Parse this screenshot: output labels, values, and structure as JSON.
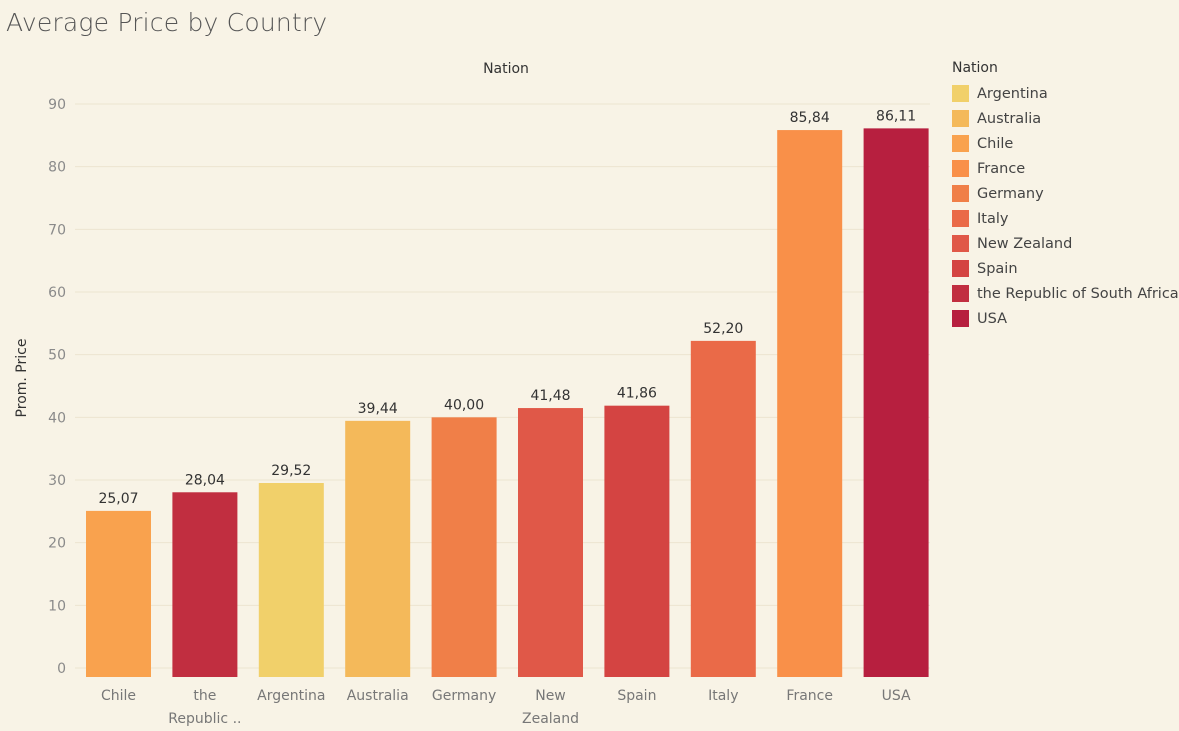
{
  "title": "Average Price by Country",
  "chart_data": {
    "type": "bar",
    "title": "Average Price by Country",
    "column_header": "Nation",
    "ylabel": "Prom. Price",
    "ylim": [
      0,
      90
    ],
    "yticks": [
      0,
      10,
      20,
      30,
      40,
      50,
      60,
      70,
      80,
      90
    ],
    "grid": true,
    "legend_position": "right",
    "categories": [
      {
        "label": [
          "Chile"
        ],
        "value": 25.07,
        "value_label": "25,07",
        "color": "#f9a24e"
      },
      {
        "label": [
          "the",
          "Republic .."
        ],
        "value": 28.04,
        "value_label": "28,04",
        "color": "#c12e40"
      },
      {
        "label": [
          "Argentina"
        ],
        "value": 29.52,
        "value_label": "29,52",
        "color": "#f1d06a"
      },
      {
        "label": [
          "Australia"
        ],
        "value": 39.44,
        "value_label": "39,44",
        "color": "#f4b95a"
      },
      {
        "label": [
          "Germany"
        ],
        "value": 40.0,
        "value_label": "40,00",
        "color": "#f07f48"
      },
      {
        "label": [
          "New",
          "Zealand"
        ],
        "value": 41.48,
        "value_label": "41,48",
        "color": "#e05848"
      },
      {
        "label": [
          "Spain"
        ],
        "value": 41.86,
        "value_label": "41,86",
        "color": "#d44442"
      },
      {
        "label": [
          "Italy"
        ],
        "value": 52.2,
        "value_label": "52,20",
        "color": "#ea6a48"
      },
      {
        "label": [
          "France"
        ],
        "value": 85.84,
        "value_label": "85,84",
        "color": "#f99049"
      },
      {
        "label": [
          "USA"
        ],
        "value": 86.11,
        "value_label": "86,11",
        "color": "#b71f3f"
      }
    ]
  },
  "legend": {
    "title": "Nation",
    "items": [
      {
        "label": "Argentina",
        "color": "#f1d06a"
      },
      {
        "label": "Australia",
        "color": "#f4b95a"
      },
      {
        "label": "Chile",
        "color": "#f9a24e"
      },
      {
        "label": "France",
        "color": "#f99049"
      },
      {
        "label": "Germany",
        "color": "#f07f48"
      },
      {
        "label": "Italy",
        "color": "#ea6a48"
      },
      {
        "label": "New Zealand",
        "color": "#e05848"
      },
      {
        "label": "Spain",
        "color": "#d44442"
      },
      {
        "label": "the Republic of South Africa",
        "color": "#c12e40"
      },
      {
        "label": "USA",
        "color": "#b71f3f"
      }
    ]
  }
}
